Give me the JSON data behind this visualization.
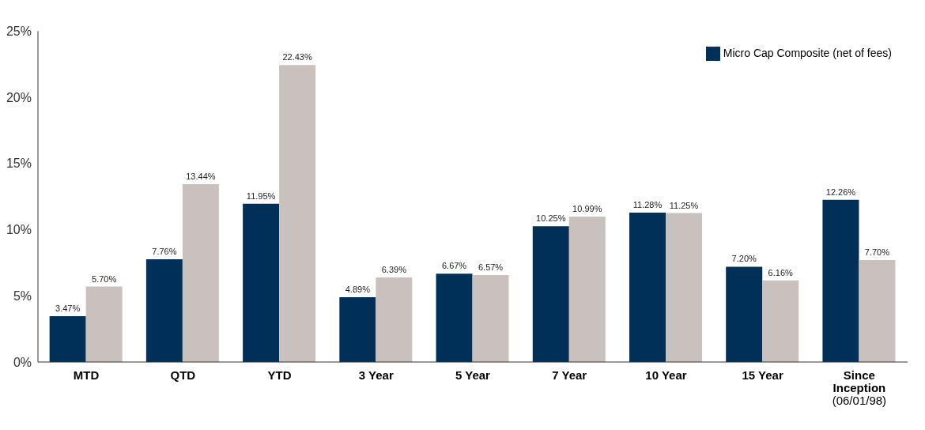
{
  "chart_data": {
    "type": "bar",
    "categories": [
      "MTD",
      "QTD",
      "YTD",
      "3 Year",
      "5 Year",
      "7 Year",
      "10 Year",
      "15 Year",
      "Since Inception (06/01/98)"
    ],
    "series": [
      {
        "name": "Micro Cap Composite (net of fees)",
        "color": "#003057",
        "values": [
          3.47,
          7.76,
          11.95,
          4.89,
          6.67,
          10.25,
          11.28,
          7.2,
          12.26
        ],
        "value_labels": [
          "3.47%",
          "7.76%",
          "11.95%",
          "4.89%",
          "6.67%",
          "10.25%",
          "11.28%",
          "7.20%",
          "12.26%"
        ]
      },
      {
        "color": "#c9c1bd",
        "values": [
          5.7,
          13.44,
          22.43,
          6.39,
          6.57,
          10.99,
          11.25,
          6.16,
          7.7
        ],
        "value_labels": [
          "5.70%",
          "13.44%",
          "22.43%",
          "6.39%",
          "6.57%",
          "10.99%",
          "11.25%",
          "6.16%",
          "7.70%"
        ]
      }
    ],
    "ylim": [
      0,
      25
    ],
    "yticks": [
      {
        "value": 0,
        "label": "0%"
      },
      {
        "value": 5,
        "label": "5%"
      },
      {
        "value": 10,
        "label": "10%"
      },
      {
        "value": 15,
        "label": "15%"
      },
      {
        "value": 20,
        "label": "20%"
      },
      {
        "value": 25,
        "label": "25%"
      }
    ],
    "grid": false,
    "legend": "top right"
  }
}
